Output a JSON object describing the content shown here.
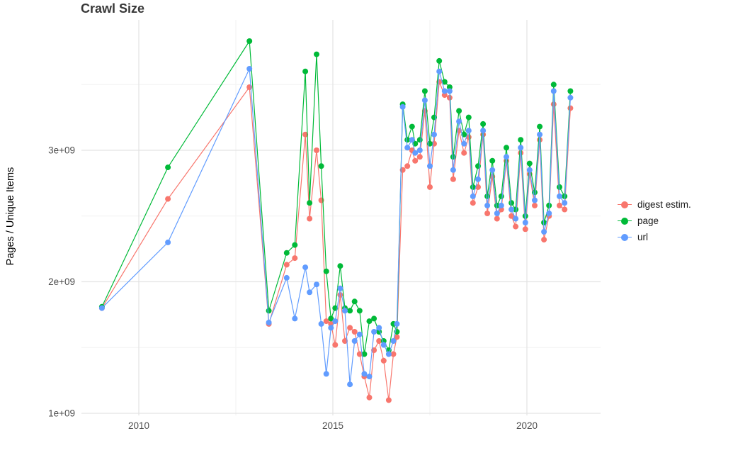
{
  "chart_data": {
    "type": "line",
    "title": "Crawl Size",
    "xlabel": "",
    "ylabel": "Pages / Unique Items",
    "legend_position": "right",
    "grid": true,
    "xlim": [
      2008.5,
      2021.9
    ],
    "ylim": [
      1000000000.0,
      3990000000.0
    ],
    "x_ticks": [
      {
        "value": 2010,
        "label": "2010"
      },
      {
        "value": 2015,
        "label": "2015"
      },
      {
        "value": 2020,
        "label": "2020"
      }
    ],
    "x_minor_ticks": [
      2012.5,
      2017.5
    ],
    "y_ticks": [
      {
        "value": 1000000000.0,
        "label": "1e+09"
      },
      {
        "value": 2000000000.0,
        "label": "2e+09"
      },
      {
        "value": 3000000000.0,
        "label": "3e+09"
      }
    ],
    "y_minor_ticks": [
      1500000000.0,
      2500000000.0,
      3500000000.0
    ],
    "x_unit": "year (decimal, crawl date)",
    "y_unit": "pages / unique items (count)",
    "x": [
      2009.05,
      2010.75,
      2012.85,
      2013.35,
      2013.81,
      2014.02,
      2014.29,
      2014.4,
      2014.58,
      2014.7,
      2014.83,
      2014.95,
      2015.06,
      2015.19,
      2015.31,
      2015.44,
      2015.56,
      2015.69,
      2015.81,
      2015.94,
      2016.06,
      2016.19,
      2016.31,
      2016.44,
      2016.56,
      2016.65,
      2016.8,
      2016.92,
      2017.04,
      2017.12,
      2017.24,
      2017.37,
      2017.5,
      2017.61,
      2017.74,
      2017.88,
      2018.01,
      2018.1,
      2018.25,
      2018.38,
      2018.5,
      2018.61,
      2018.74,
      2018.87,
      2018.98,
      2019.11,
      2019.23,
      2019.34,
      2019.47,
      2019.6,
      2019.71,
      2019.84,
      2019.96,
      2020.07,
      2020.2,
      2020.33,
      2020.44,
      2020.57,
      2020.69,
      2020.84,
      2020.97,
      2021.12
    ],
    "series": [
      {
        "name": "digest estim.",
        "color": "#F8766D",
        "values": [
          1800000000.0,
          2630000000.0,
          3480000000.0,
          1680000000.0,
          2130000000.0,
          2180000000.0,
          3120000000.0,
          2480000000.0,
          3000000000.0,
          2620000000.0,
          1700000000.0,
          1680000000.0,
          1520000000.0,
          1900000000.0,
          1550000000.0,
          1650000000.0,
          1620000000.0,
          1450000000.0,
          1280000000.0,
          1120000000.0,
          1480000000.0,
          1550000000.0,
          1400000000.0,
          1100000000.0,
          1450000000.0,
          1580000000.0,
          2850000000.0,
          2880000000.0,
          3000000000.0,
          2920000000.0,
          2950000000.0,
          3300000000.0,
          2720000000.0,
          3050000000.0,
          3520000000.0,
          3420000000.0,
          3400000000.0,
          2780000000.0,
          3150000000.0,
          2980000000.0,
          3100000000.0,
          2600000000.0,
          2720000000.0,
          3120000000.0,
          2520000000.0,
          2800000000.0,
          2480000000.0,
          2550000000.0,
          2920000000.0,
          2500000000.0,
          2420000000.0,
          2980000000.0,
          2400000000.0,
          2820000000.0,
          2580000000.0,
          3080000000.0,
          2320000000.0,
          2500000000.0,
          3350000000.0,
          2580000000.0,
          2550000000.0,
          3320000000.0
        ]
      },
      {
        "name": "page",
        "color": "#00BA38",
        "values": [
          1810000000.0,
          2870000000.0,
          3830000000.0,
          1780000000.0,
          2220000000.0,
          2280000000.0,
          3600000000.0,
          2600000000.0,
          3730000000.0,
          2880000000.0,
          2080000000.0,
          1720000000.0,
          1800000000.0,
          2120000000.0,
          1800000000.0,
          1780000000.0,
          1850000000.0,
          1780000000.0,
          1450000000.0,
          1700000000.0,
          1720000000.0,
          1620000000.0,
          1550000000.0,
          1480000000.0,
          1680000000.0,
          1620000000.0,
          3350000000.0,
          3080000000.0,
          3180000000.0,
          3050000000.0,
          3080000000.0,
          3450000000.0,
          3050000000.0,
          3250000000.0,
          3680000000.0,
          3520000000.0,
          3480000000.0,
          2950000000.0,
          3300000000.0,
          3120000000.0,
          3250000000.0,
          2720000000.0,
          2880000000.0,
          3200000000.0,
          2650000000.0,
          2920000000.0,
          2580000000.0,
          2650000000.0,
          3020000000.0,
          2600000000.0,
          2550000000.0,
          3080000000.0,
          2500000000.0,
          2900000000.0,
          2680000000.0,
          3180000000.0,
          2450000000.0,
          2580000000.0,
          3500000000.0,
          2720000000.0,
          2650000000.0,
          3450000000.0
        ]
      },
      {
        "name": "url",
        "color": "#619CFF",
        "values": [
          1800000000.0,
          2300000000.0,
          3620000000.0,
          1690000000.0,
          2030000000.0,
          1720000000.0,
          2110000000.0,
          1920000000.0,
          1980000000.0,
          1680000000.0,
          1300000000.0,
          1650000000.0,
          1700000000.0,
          1950000000.0,
          1780000000.0,
          1220000000.0,
          1550000000.0,
          1600000000.0,
          1300000000.0,
          1280000000.0,
          1620000000.0,
          1650000000.0,
          1520000000.0,
          1450000000.0,
          1550000000.0,
          1680000000.0,
          3330000000.0,
          3020000000.0,
          3080000000.0,
          2980000000.0,
          3000000000.0,
          3380000000.0,
          2880000000.0,
          3120000000.0,
          3600000000.0,
          3450000000.0,
          3450000000.0,
          2850000000.0,
          3220000000.0,
          3050000000.0,
          3150000000.0,
          2650000000.0,
          2780000000.0,
          3150000000.0,
          2580000000.0,
          2850000000.0,
          2520000000.0,
          2580000000.0,
          2950000000.0,
          2550000000.0,
          2480000000.0,
          3020000000.0,
          2450000000.0,
          2850000000.0,
          2620000000.0,
          3120000000.0,
          2380000000.0,
          2520000000.0,
          3450000000.0,
          2650000000.0,
          2600000000.0,
          3400000000.0
        ]
      }
    ]
  }
}
